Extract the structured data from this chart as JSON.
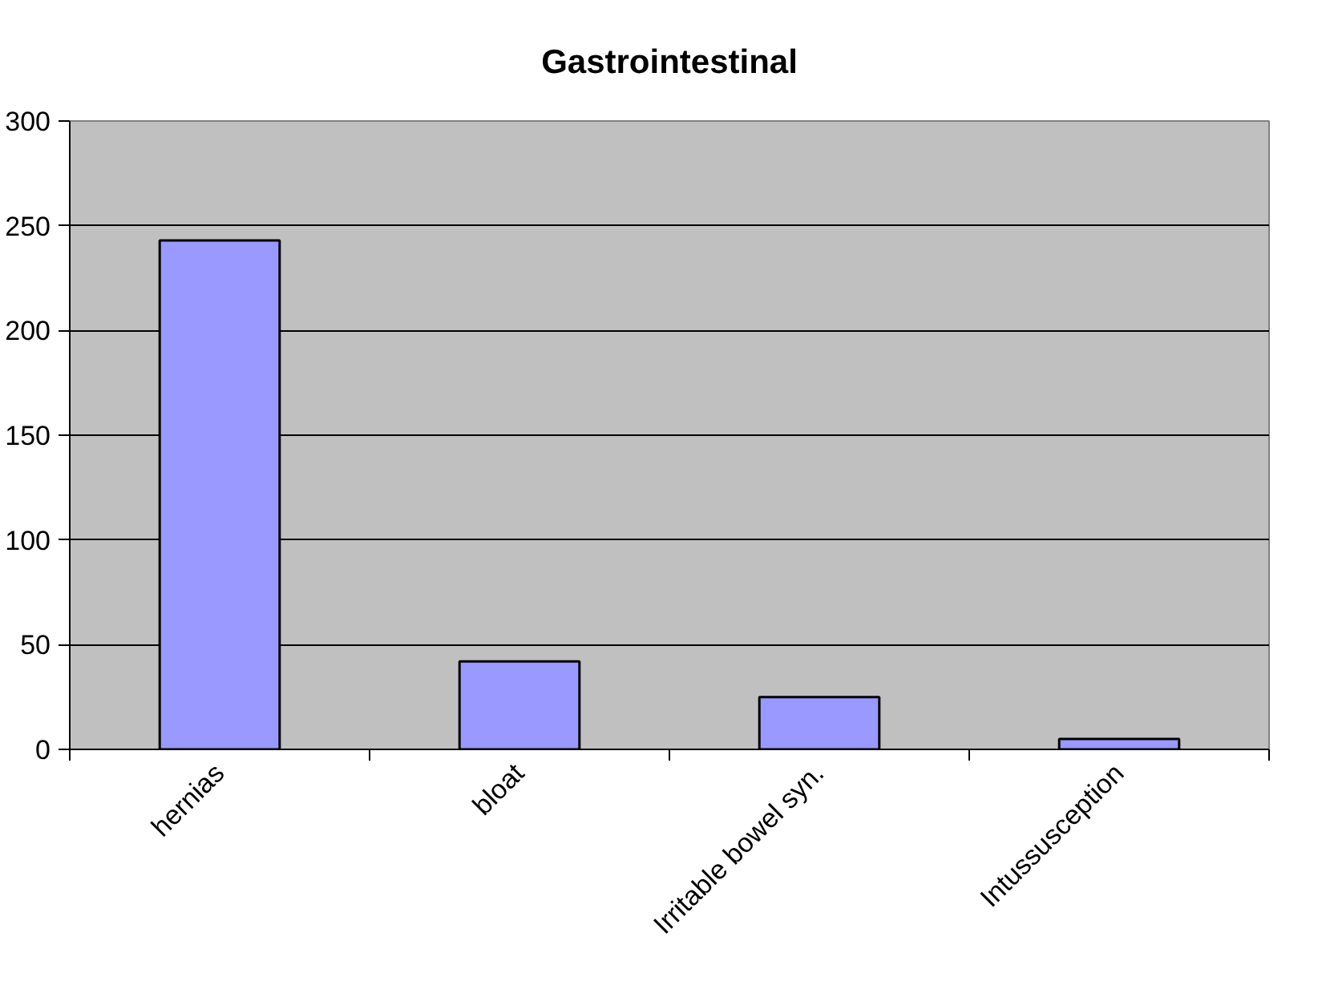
{
  "chart_data": {
    "type": "bar",
    "title": "Gastrointestinal",
    "categories": [
      "hernias",
      "bloat",
      "Irritable bowel syn.",
      "Intussusception"
    ],
    "values": [
      243,
      42,
      25,
      5
    ],
    "color": "#9999ff",
    "ylim": [
      0,
      300
    ],
    "yticks": [
      0,
      50,
      100,
      150,
      200,
      250,
      300
    ],
    "grid": "y"
  }
}
